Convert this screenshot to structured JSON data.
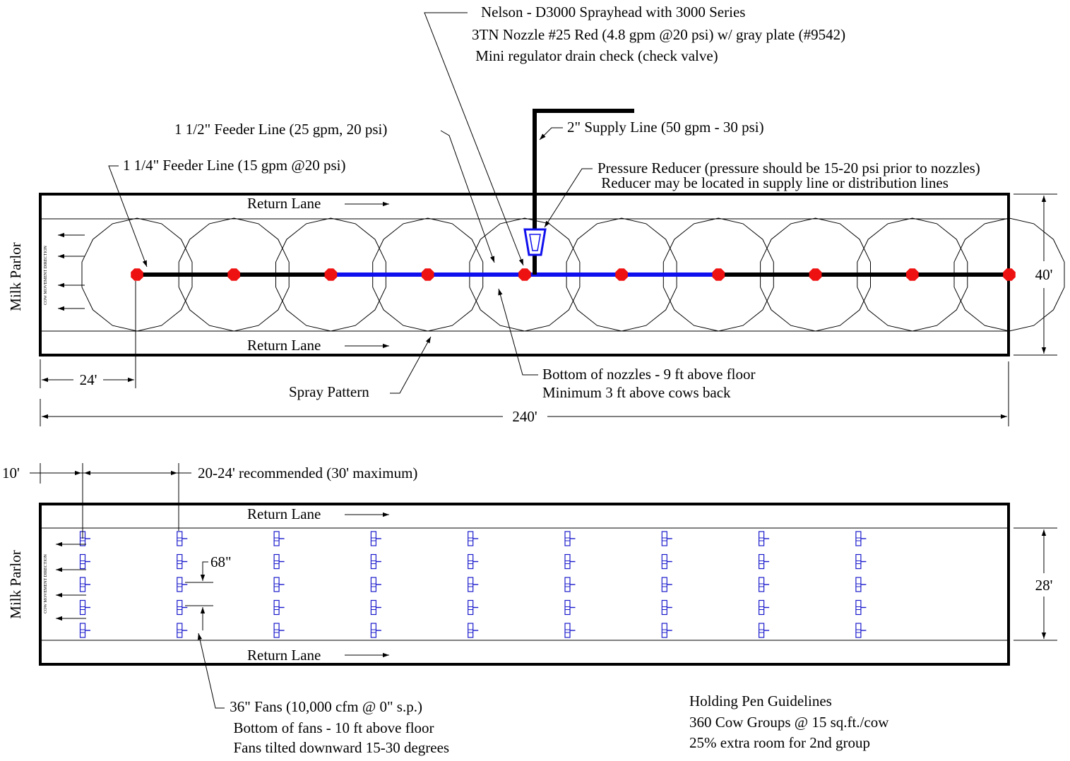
{
  "top_plan": {
    "sprayhead_note": [
      "Nelson - D3000 Sprayhead with 3000 Series",
      "3TN Nozzle #25 Red (4.8 gpm @20 psi) w/ gray plate (#9542)",
      " Mini regulator drain check (check valve)"
    ],
    "feeder_15": "1 1/2\" Feeder Line (25 gpm, 20 psi)",
    "supply": "2\" Supply Line (50 gpm - 30 psi)",
    "feeder_114": "1 1/4\" Feeder Line (15 gpm @20 psi)",
    "reducer": [
      "Pressure Reducer (pressure should be 15-20 psi prior to nozzles)",
      " Reducer may be located in supply line or distribution lines"
    ],
    "return_lane_top": "Return Lane",
    "return_lane_bottom": "Return Lane",
    "milk_parlor": "Milk Parlor",
    "cow_direction": "COW MOVEMENT DIRECTION",
    "dim_width": "40'",
    "dim_first": "24'",
    "dim_total": "240'",
    "spray_pattern": "Spray Pattern",
    "nozzle_note": [
      "Bottom of nozzles - 9 ft above floor",
      "Minimum 3 ft above cows back"
    ]
  },
  "fan_plan": {
    "dim_first": "10'",
    "dim_spacing": "20-24' recommended (30' maximum)",
    "return_lane_top": "Return Lane",
    "return_lane_bottom": "Return Lane",
    "milk_parlor": "Milk Parlor",
    "cow_direction": "COW MOVEMENT DIRECTION",
    "dim_row": "68\"",
    "dim_width": "28'",
    "fan_note": [
      " 36\" Fans (10,000 cfm @ 0\" s.p.)",
      "  Bottom of fans - 10 ft above floor",
      "  Fans tilted downward 15-30 degrees"
    ]
  },
  "guidelines": [
    "Holding Pen Guidelines",
    "360 Cow Groups @ 15 sq.ft./cow",
    "25% extra room for 2nd group"
  ],
  "colors": {
    "pipe_blue": "#1010ee",
    "nozzle_red": "#ee1111",
    "fan_blue": "#1a1acc",
    "line_black": "#000000"
  },
  "nozzle_count": 10,
  "fan_grid": {
    "columns": 9,
    "rows": 5
  }
}
